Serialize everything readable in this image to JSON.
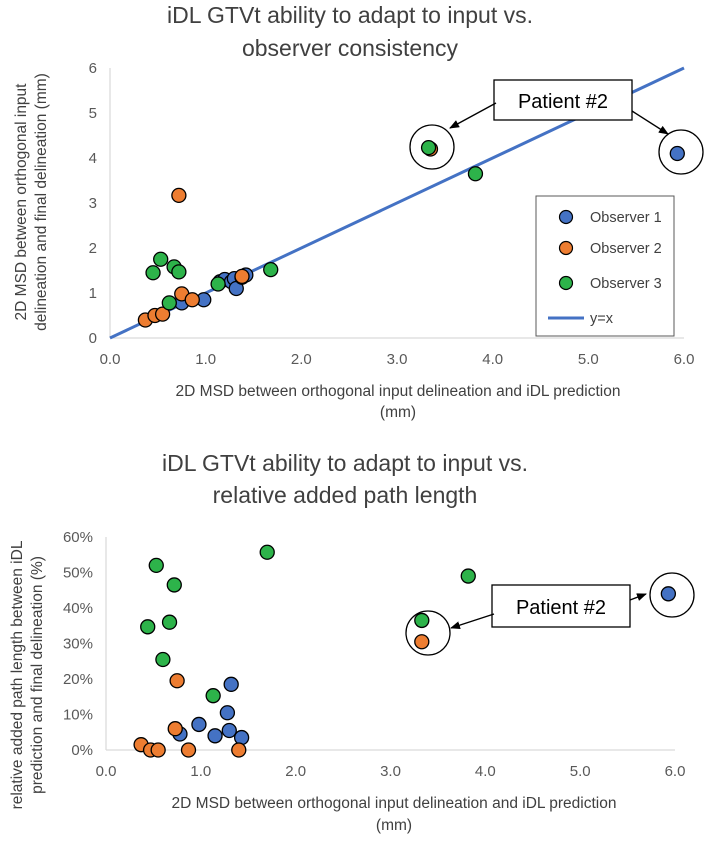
{
  "colors": {
    "observer1": "#4472c4",
    "observer2": "#ed7d31",
    "observer3": "#2db34a",
    "line": "#4472c4",
    "axis": "#d9d9d9",
    "text": "#404040"
  },
  "chart_data": [
    {
      "type": "scatter",
      "title_lines": [
        "iDL GTVt ability to adapt to input vs.",
        "observer consistency"
      ],
      "xlabel_lines": [
        "2D MSD between orthogonal input delineation and iDL prediction",
        "(mm)"
      ],
      "ylabel_lines": [
        "2D MSD between orthogonal input",
        "delineation and final delineation (mm)"
      ],
      "xlim": [
        0,
        6
      ],
      "ylim": [
        0,
        6
      ],
      "xticks": [
        {
          "v": 0,
          "label": "0.0"
        },
        {
          "v": 1,
          "label": "1.0"
        },
        {
          "v": 2,
          "label": "2.0"
        },
        {
          "v": 3,
          "label": "3.0"
        },
        {
          "v": 4,
          "label": "4.0"
        },
        {
          "v": 5,
          "label": "5.0"
        },
        {
          "v": 6,
          "label": "6.0"
        }
      ],
      "yticks": [
        {
          "v": 0,
          "label": "0"
        },
        {
          "v": 1,
          "label": "1"
        },
        {
          "v": 2,
          "label": "2"
        },
        {
          "v": 3,
          "label": "3"
        },
        {
          "v": 4,
          "label": "4"
        },
        {
          "v": 5,
          "label": "5"
        },
        {
          "v": 6,
          "label": "6"
        }
      ],
      "series": [
        {
          "name": "Observer 1",
          "color": "#4472c4",
          "points": [
            [
              0.75,
              0.78
            ],
            [
              0.98,
              0.85
            ],
            [
              1.15,
              1.25
            ],
            [
              1.2,
              1.3
            ],
            [
              1.27,
              1.25
            ],
            [
              1.3,
              1.32
            ],
            [
              1.32,
              1.1
            ],
            [
              1.38,
              1.35
            ],
            [
              1.42,
              1.4
            ],
            [
              5.93,
              4.1
            ]
          ]
        },
        {
          "name": "Observer 2",
          "color": "#ed7d31",
          "points": [
            [
              0.37,
              0.4
            ],
            [
              0.47,
              0.5
            ],
            [
              0.55,
              0.53
            ],
            [
              0.72,
              3.17
            ],
            [
              0.75,
              0.98
            ],
            [
              0.86,
              0.85
            ],
            [
              1.38,
              1.37
            ],
            [
              3.35,
              4.2
            ]
          ]
        },
        {
          "name": "Observer 3",
          "color": "#2db34a",
          "points": [
            [
              0.45,
              1.45
            ],
            [
              0.53,
              1.75
            ],
            [
              0.62,
              0.78
            ],
            [
              0.67,
              1.58
            ],
            [
              0.72,
              1.47
            ],
            [
              1.13,
              1.2
            ],
            [
              1.68,
              1.52
            ],
            [
              3.33,
              4.23
            ],
            [
              3.82,
              3.65
            ]
          ]
        }
      ],
      "line": {
        "name": "y=x",
        "from": [
          0,
          0
        ],
        "to": [
          6,
          6
        ]
      },
      "legend": {
        "position": "right-middle",
        "entries": [
          "Observer 1",
          "Observer 2",
          "Observer 3",
          "y=x"
        ]
      },
      "annotation": {
        "text": "Patient #2"
      }
    },
    {
      "type": "scatter",
      "title_lines": [
        "iDL GTVt ability to adapt to input vs.",
        "relative added path length"
      ],
      "xlabel_lines": [
        "2D MSD between orthogonal input delineation and iDL prediction",
        "(mm)"
      ],
      "ylabel_lines": [
        "relative added path length between iDL",
        "prediction and final delineation (%)"
      ],
      "xlim": [
        0,
        6
      ],
      "ylim": [
        0,
        60
      ],
      "xticks": [
        {
          "v": 0,
          "label": "0.0"
        },
        {
          "v": 1,
          "label": "1.0"
        },
        {
          "v": 2,
          "label": "2.0"
        },
        {
          "v": 3,
          "label": "3.0"
        },
        {
          "v": 4,
          "label": "4.0"
        },
        {
          "v": 5,
          "label": "5.0"
        },
        {
          "v": 6,
          "label": "6.0"
        }
      ],
      "yticks": [
        {
          "v": 0,
          "label": "0%"
        },
        {
          "v": 10,
          "label": "10%"
        },
        {
          "v": 20,
          "label": "20%"
        },
        {
          "v": 30,
          "label": "30%"
        },
        {
          "v": 40,
          "label": "40%"
        },
        {
          "v": 50,
          "label": "50%"
        },
        {
          "v": 60,
          "label": "60%"
        }
      ],
      "series": [
        {
          "name": "Observer 1",
          "color": "#4472c4",
          "points": [
            [
              0.78,
              4.5
            ],
            [
              0.98,
              7.2
            ],
            [
              1.15,
              4
            ],
            [
              1.28,
              10.5
            ],
            [
              1.3,
              5.5
            ],
            [
              1.32,
              18.5
            ],
            [
              1.43,
              3.5
            ],
            [
              5.93,
              44
            ]
          ]
        },
        {
          "name": "Observer 2",
          "color": "#ed7d31",
          "points": [
            [
              0.37,
              1.5
            ],
            [
              0.47,
              0
            ],
            [
              0.55,
              0
            ],
            [
              0.73,
              6
            ],
            [
              0.75,
              19.5
            ],
            [
              0.87,
              0
            ],
            [
              1.4,
              0
            ],
            [
              3.33,
              30.5
            ]
          ]
        },
        {
          "name": "Observer 3",
          "color": "#2db34a",
          "points": [
            [
              0.44,
              34.7
            ],
            [
              0.53,
              52
            ],
            [
              0.6,
              25.5
            ],
            [
              0.67,
              36
            ],
            [
              0.72,
              46.5
            ],
            [
              1.13,
              15.3
            ],
            [
              1.7,
              55.7
            ],
            [
              3.33,
              36.5
            ],
            [
              3.82,
              49
            ]
          ]
        }
      ],
      "annotation": {
        "text": "Patient #2"
      }
    }
  ]
}
